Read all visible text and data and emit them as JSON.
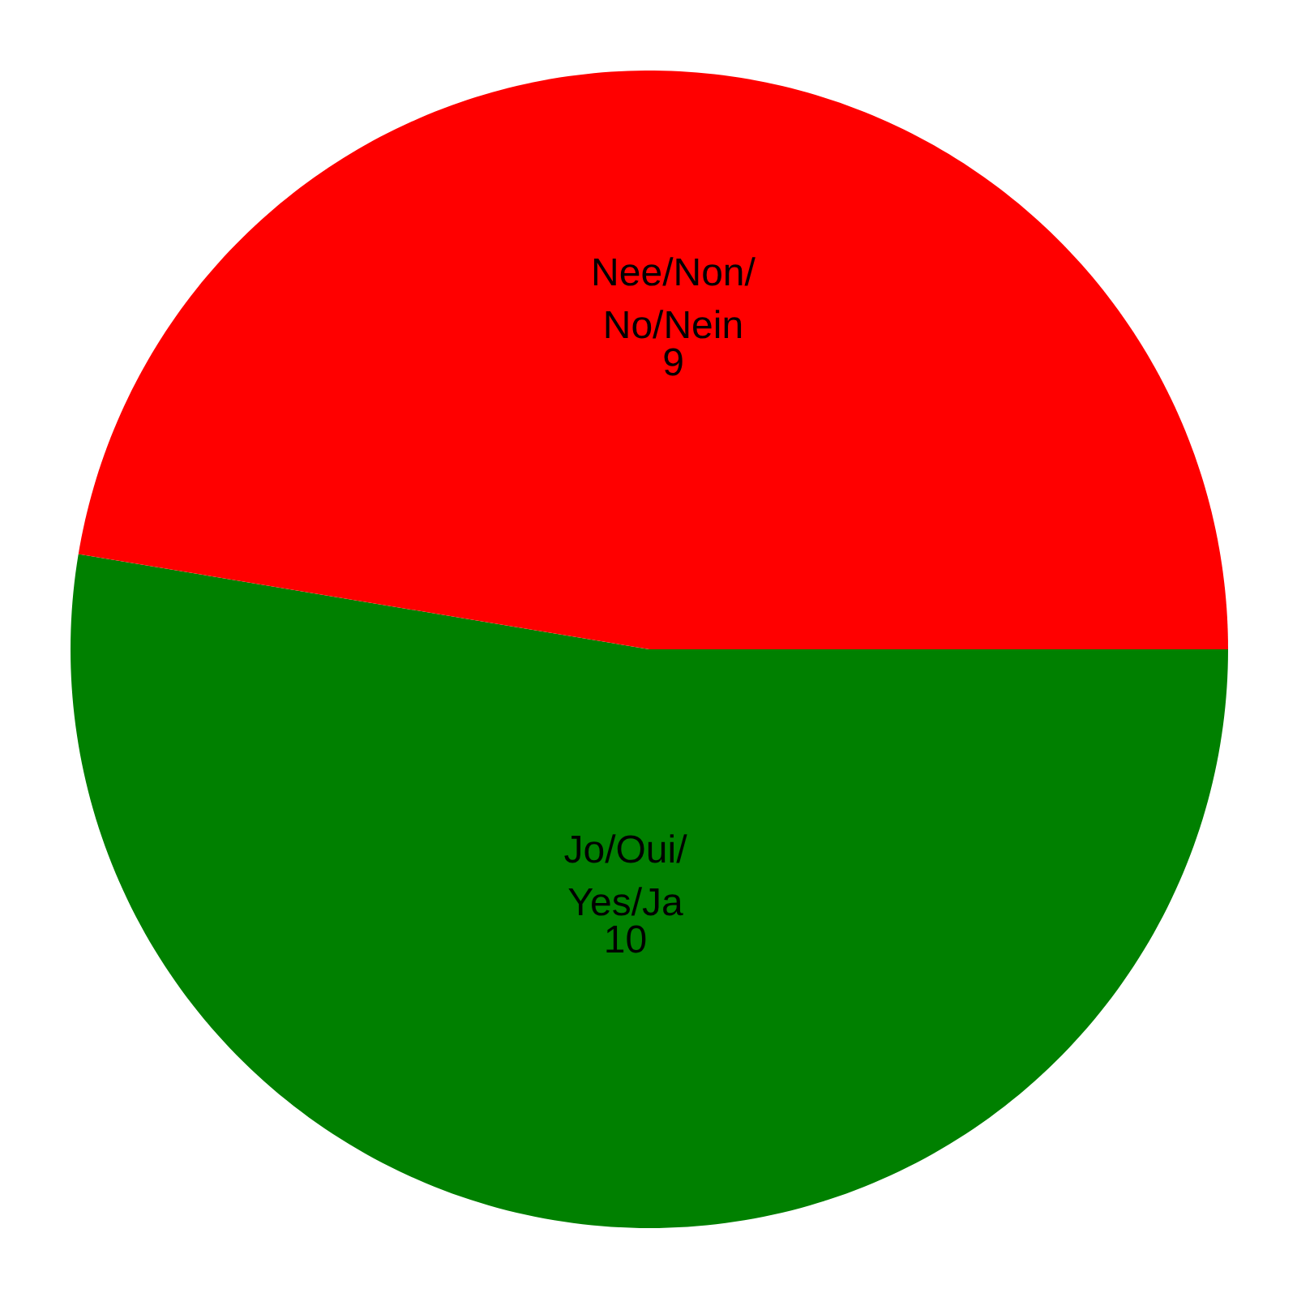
{
  "chart_data": {
    "type": "pie",
    "categories": [
      "Jo/Oui/\nYes/Ja",
      "Nee/Non/\nNo/Nein"
    ],
    "values": [
      10,
      9
    ],
    "colors": [
      "#008000",
      "#ff0000"
    ],
    "data_labels": true
  }
}
